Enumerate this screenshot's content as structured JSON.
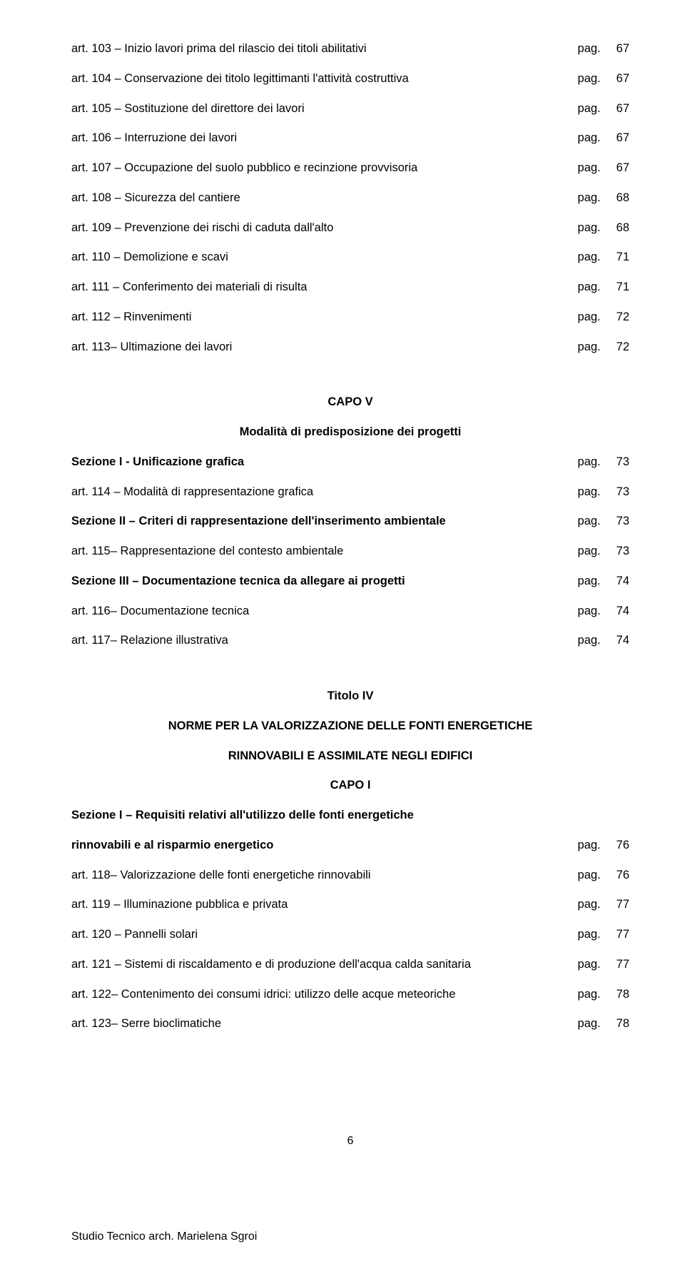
{
  "section1": [
    {
      "label": "art. 103 – Inizio lavori prima del rilascio dei  titoli abilitativi",
      "page": "67",
      "bold": false
    },
    {
      "label": "art. 104 – Conservazione dei titolo legittimanti l'attività costruttiva",
      "page": "67",
      "bold": false
    },
    {
      "label": "art. 105 – Sostituzione del direttore dei lavori",
      "page": "67",
      "bold": false
    },
    {
      "label": "art. 106 – Interruzione dei lavori",
      "page": "67",
      "bold": false
    },
    {
      "label": "art. 107 – Occupazione del suolo pubblico e recinzione provvisoria",
      "page": "67",
      "bold": false
    },
    {
      "label": "art. 108 – Sicurezza del cantiere",
      "page": "68",
      "bold": false
    },
    {
      "label": "art. 109 – Prevenzione dei rischi di caduta dall'alto",
      "page": "68",
      "bold": false
    },
    {
      "label": "art. 110 – Demolizione e scavi",
      "page": "71",
      "bold": false
    },
    {
      "label": "art. 111 – Conferimento dei materiali di risulta",
      "page": "71",
      "bold": false
    },
    {
      "label": "art. 112 – Rinvenimenti",
      "page": "72",
      "bold": false
    },
    {
      "label": "art. 113– Ultimazione dei lavori",
      "page": "72",
      "bold": false
    }
  ],
  "capo_v": {
    "title": "CAPO V",
    "subtitle": "Modalità di predisposizione dei progetti"
  },
  "section2": [
    {
      "label": "Sezione I - Unificazione grafica",
      "page": "73",
      "bold": true
    },
    {
      "label": "art. 114 – Modalità di rappresentazione grafica",
      "page": "73",
      "bold": false
    },
    {
      "label": "Sezione II – Criteri di rappresentazione dell'inserimento ambientale",
      "page": "73",
      "bold": true
    },
    {
      "label": "art. 115– Rappresentazione del contesto ambientale",
      "page": "73",
      "bold": false
    },
    {
      "label": "Sezione III – Documentazione tecnica da allegare ai progetti",
      "page": "74",
      "bold": true
    },
    {
      "label": "art. 116– Documentazione tecnica",
      "page": "74",
      "bold": false
    },
    {
      "label": "art. 117– Relazione illustrativa",
      "page": "74",
      "bold": false
    }
  ],
  "titolo_iv": {
    "title": "Titolo IV",
    "line1": "NORME PER LA VALORIZZAZIONE DELLE FONTI ENERGETICHE",
    "line2": "RINNOVABILI E ASSIMILATE NEGLI EDIFICI",
    "capo": "CAPO I",
    "sezione_l1": "Sezione I – Requisiti relativi all'utilizzo delle fonti energetiche"
  },
  "section3_first": {
    "label": "rinnovabili e al risparmio energetico",
    "page": "76",
    "bold": true
  },
  "section3": [
    {
      "label": "art. 118– Valorizzazione delle fonti energetiche rinnovabili",
      "page": "76",
      "bold": false
    },
    {
      "label": "art. 119 – Illuminazione pubblica e privata",
      "page": "77",
      "bold": false
    },
    {
      "label": "art. 120  – Pannelli solari",
      "page": "77",
      "bold": false
    },
    {
      "label": "art. 121 – Sistemi di riscaldamento e di produzione dell'acqua calda sanitaria",
      "page": "77",
      "bold": false
    },
    {
      "label": "art. 122– Contenimento dei consumi idrici: utilizzo delle acque meteoriche",
      "page": "78",
      "bold": false
    },
    {
      "label": "art. 123– Serre bioclimatiche",
      "page": "78",
      "bold": false
    }
  ],
  "page_number": "6",
  "footer": "Studio Tecnico  arch. Marielena Sgroi",
  "pag_word": "pag."
}
